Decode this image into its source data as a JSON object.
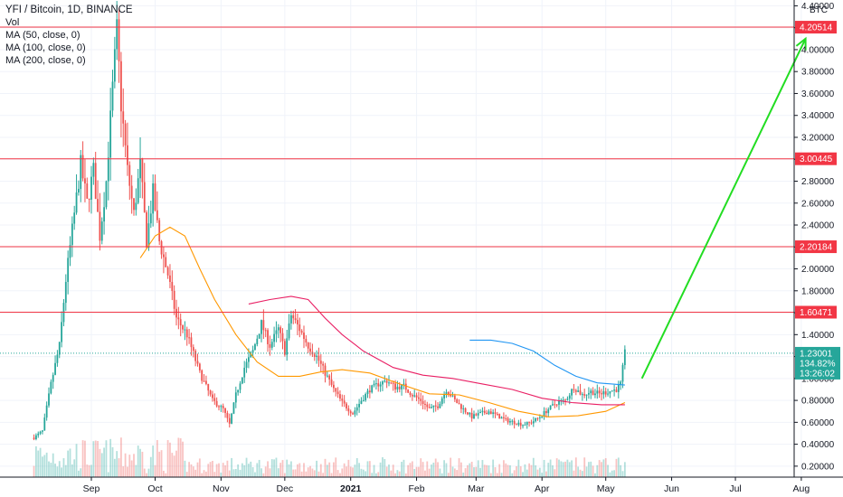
{
  "header": {
    "symbol_line": "YFI / Bitcoin, 1D, BINANCE",
    "indicators": [
      "Vol",
      "MA (50, close, 0)",
      "MA (100, close, 0)",
      "MA (200, close, 0)"
    ],
    "currency": "BTC"
  },
  "chart_data": {
    "type": "candlestick",
    "y_axis": {
      "range": [
        0.1,
        4.42
      ],
      "ticks": [
        "0.20000",
        "0.40000",
        "0.60000",
        "0.80000",
        "1.00000",
        "1.20000",
        "1.40000",
        "1.60000",
        "1.80000",
        "2.00000",
        "2.20000",
        "2.40000",
        "2.60000",
        "2.80000",
        "3.00000",
        "3.20000",
        "3.40000",
        "3.60000",
        "3.80000",
        "4.00000",
        "4.20000",
        "4.40000"
      ]
    },
    "x_axis": {
      "ticks": [
        {
          "label": "Sep",
          "bold": false
        },
        {
          "label": "Oct",
          "bold": false
        },
        {
          "label": "Nov",
          "bold": false
        },
        {
          "label": "Dec",
          "bold": false
        },
        {
          "label": "2021",
          "bold": true
        },
        {
          "label": "Feb",
          "bold": false
        },
        {
          "label": "Mar",
          "bold": false
        },
        {
          "label": "Apr",
          "bold": false
        },
        {
          "label": "May",
          "bold": false
        },
        {
          "label": "Jun",
          "bold": false
        },
        {
          "label": "Jul",
          "bold": false
        },
        {
          "label": "Aug",
          "bold": false
        }
      ]
    },
    "levels": [
      {
        "value": 4.20514,
        "label": "4.20514"
      },
      {
        "value": 3.00445,
        "label": "3.00445"
      },
      {
        "value": 2.20184,
        "label": "2.20184"
      },
      {
        "value": 1.60471,
        "label": "1.60471"
      }
    ],
    "current": {
      "price": "1.23001",
      "change": "134.82%",
      "countdown": "13:26:02",
      "value": 1.23001
    },
    "close_path": [
      [
        "2020-08-05",
        0.46
      ],
      [
        "2020-08-09",
        0.52
      ],
      [
        "2020-08-13",
        0.95
      ],
      [
        "2020-08-17",
        1.3
      ],
      [
        "2020-08-20",
        1.9
      ],
      [
        "2020-08-24",
        2.5
      ],
      [
        "2020-08-27",
        2.95
      ],
      [
        "2020-08-30",
        2.6
      ],
      [
        "2020-09-02",
        2.9
      ],
      [
        "2020-09-05",
        2.3
      ],
      [
        "2020-09-08",
        2.8
      ],
      [
        "2020-09-11",
        3.65
      ],
      [
        "2020-09-13",
        4.18
      ],
      [
        "2020-09-15",
        3.5
      ],
      [
        "2020-09-18",
        2.9
      ],
      [
        "2020-09-21",
        2.5
      ],
      [
        "2020-09-24",
        2.95
      ],
      [
        "2020-09-27",
        2.25
      ],
      [
        "2020-09-30",
        2.7
      ],
      [
        "2020-10-03",
        2.25
      ],
      [
        "2020-10-07",
        1.95
      ],
      [
        "2020-10-11",
        1.55
      ],
      [
        "2020-10-16",
        1.4
      ],
      [
        "2020-10-22",
        1.05
      ],
      [
        "2020-10-28",
        0.8
      ],
      [
        "2020-11-02",
        0.72
      ],
      [
        "2020-11-05",
        0.58
      ],
      [
        "2020-11-08",
        0.85
      ],
      [
        "2020-11-12",
        1.1
      ],
      [
        "2020-11-16",
        1.25
      ],
      [
        "2020-11-20",
        1.5
      ],
      [
        "2020-11-24",
        1.3
      ],
      [
        "2020-11-28",
        1.45
      ],
      [
        "2020-12-01",
        1.25
      ],
      [
        "2020-12-04",
        1.58
      ],
      [
        "2020-12-08",
        1.45
      ],
      [
        "2020-12-12",
        1.3
      ],
      [
        "2020-12-16",
        1.2
      ],
      [
        "2020-12-20",
        1.05
      ],
      [
        "2020-12-24",
        0.9
      ],
      [
        "2020-12-28",
        0.78
      ],
      [
        "2021-01-02",
        0.68
      ],
      [
        "2021-01-06",
        0.8
      ],
      [
        "2021-01-10",
        0.9
      ],
      [
        "2021-01-14",
        0.95
      ],
      [
        "2021-01-18",
        0.98
      ],
      [
        "2021-01-22",
        0.92
      ],
      [
        "2021-01-26",
        0.93
      ],
      [
        "2021-01-30",
        0.85
      ],
      [
        "2021-02-03",
        0.8
      ],
      [
        "2021-02-07",
        0.72
      ],
      [
        "2021-02-11",
        0.75
      ],
      [
        "2021-02-15",
        0.9
      ],
      [
        "2021-02-19",
        0.8
      ],
      [
        "2021-02-23",
        0.72
      ],
      [
        "2021-02-27",
        0.65
      ],
      [
        "2021-03-03",
        0.68
      ],
      [
        "2021-03-07",
        0.7
      ],
      [
        "2021-03-11",
        0.66
      ],
      [
        "2021-03-15",
        0.62
      ],
      [
        "2021-03-19",
        0.6
      ],
      [
        "2021-03-23",
        0.58
      ],
      [
        "2021-03-27",
        0.6
      ],
      [
        "2021-03-31",
        0.65
      ],
      [
        "2021-04-04",
        0.72
      ],
      [
        "2021-04-08",
        0.78
      ],
      [
        "2021-04-12",
        0.8
      ],
      [
        "2021-04-16",
        0.92
      ],
      [
        "2021-04-20",
        0.85
      ],
      [
        "2021-04-24",
        0.88
      ],
      [
        "2021-04-28",
        0.86
      ],
      [
        "2021-05-02",
        0.88
      ],
      [
        "2021-05-06",
        0.9
      ],
      [
        "2021-05-08",
        0.95
      ],
      [
        "2021-05-10",
        1.23
      ]
    ],
    "series": [
      {
        "name": "MA (50, close, 0)",
        "color": "#ff9800",
        "points": [
          [
            "2020-09-24",
            2.1
          ],
          [
            "2020-10-01",
            2.3
          ],
          [
            "2020-10-08",
            2.38
          ],
          [
            "2020-10-15",
            2.3
          ],
          [
            "2020-10-22",
            2.0
          ],
          [
            "2020-10-29",
            1.72
          ],
          [
            "2020-11-08",
            1.4
          ],
          [
            "2020-11-18",
            1.15
          ],
          [
            "2020-11-28",
            1.02
          ],
          [
            "2020-12-08",
            1.02
          ],
          [
            "2020-12-18",
            1.06
          ],
          [
            "2020-12-28",
            1.08
          ],
          [
            "2021-01-10",
            1.05
          ],
          [
            "2021-01-24",
            0.95
          ],
          [
            "2021-02-07",
            0.86
          ],
          [
            "2021-02-21",
            0.85
          ],
          [
            "2021-03-07",
            0.78
          ],
          [
            "2021-03-21",
            0.7
          ],
          [
            "2021-04-04",
            0.65
          ],
          [
            "2021-04-18",
            0.66
          ],
          [
            "2021-05-01",
            0.7
          ],
          [
            "2021-05-10",
            0.78
          ]
        ]
      },
      {
        "name": "MA (100, close, 0)",
        "color": "#e91e63",
        "points": [
          [
            "2020-11-14",
            1.68
          ],
          [
            "2020-11-24",
            1.72
          ],
          [
            "2020-12-04",
            1.75
          ],
          [
            "2020-12-12",
            1.72
          ],
          [
            "2020-12-20",
            1.55
          ],
          [
            "2020-12-28",
            1.4
          ],
          [
            "2021-01-07",
            1.25
          ],
          [
            "2021-01-21",
            1.1
          ],
          [
            "2021-02-04",
            1.03
          ],
          [
            "2021-02-18",
            1.0
          ],
          [
            "2021-03-04",
            0.95
          ],
          [
            "2021-03-18",
            0.9
          ],
          [
            "2021-04-01",
            0.82
          ],
          [
            "2021-04-15",
            0.78
          ],
          [
            "2021-04-29",
            0.76
          ],
          [
            "2021-05-10",
            0.76
          ]
        ]
      },
      {
        "name": "MA (200, close, 0)",
        "color": "#2196f3",
        "points": [
          [
            "2021-02-26",
            1.35
          ],
          [
            "2021-03-08",
            1.35
          ],
          [
            "2021-03-18",
            1.32
          ],
          [
            "2021-03-28",
            1.25
          ],
          [
            "2021-04-07",
            1.12
          ],
          [
            "2021-04-17",
            1.02
          ],
          [
            "2021-04-27",
            0.96
          ],
          [
            "2021-05-10",
            0.94
          ]
        ]
      }
    ],
    "projection": {
      "color": "#22dd22",
      "from": [
        "2021-05-18",
        1.0
      ],
      "to": [
        "2021-08-03",
        4.1
      ]
    }
  }
}
